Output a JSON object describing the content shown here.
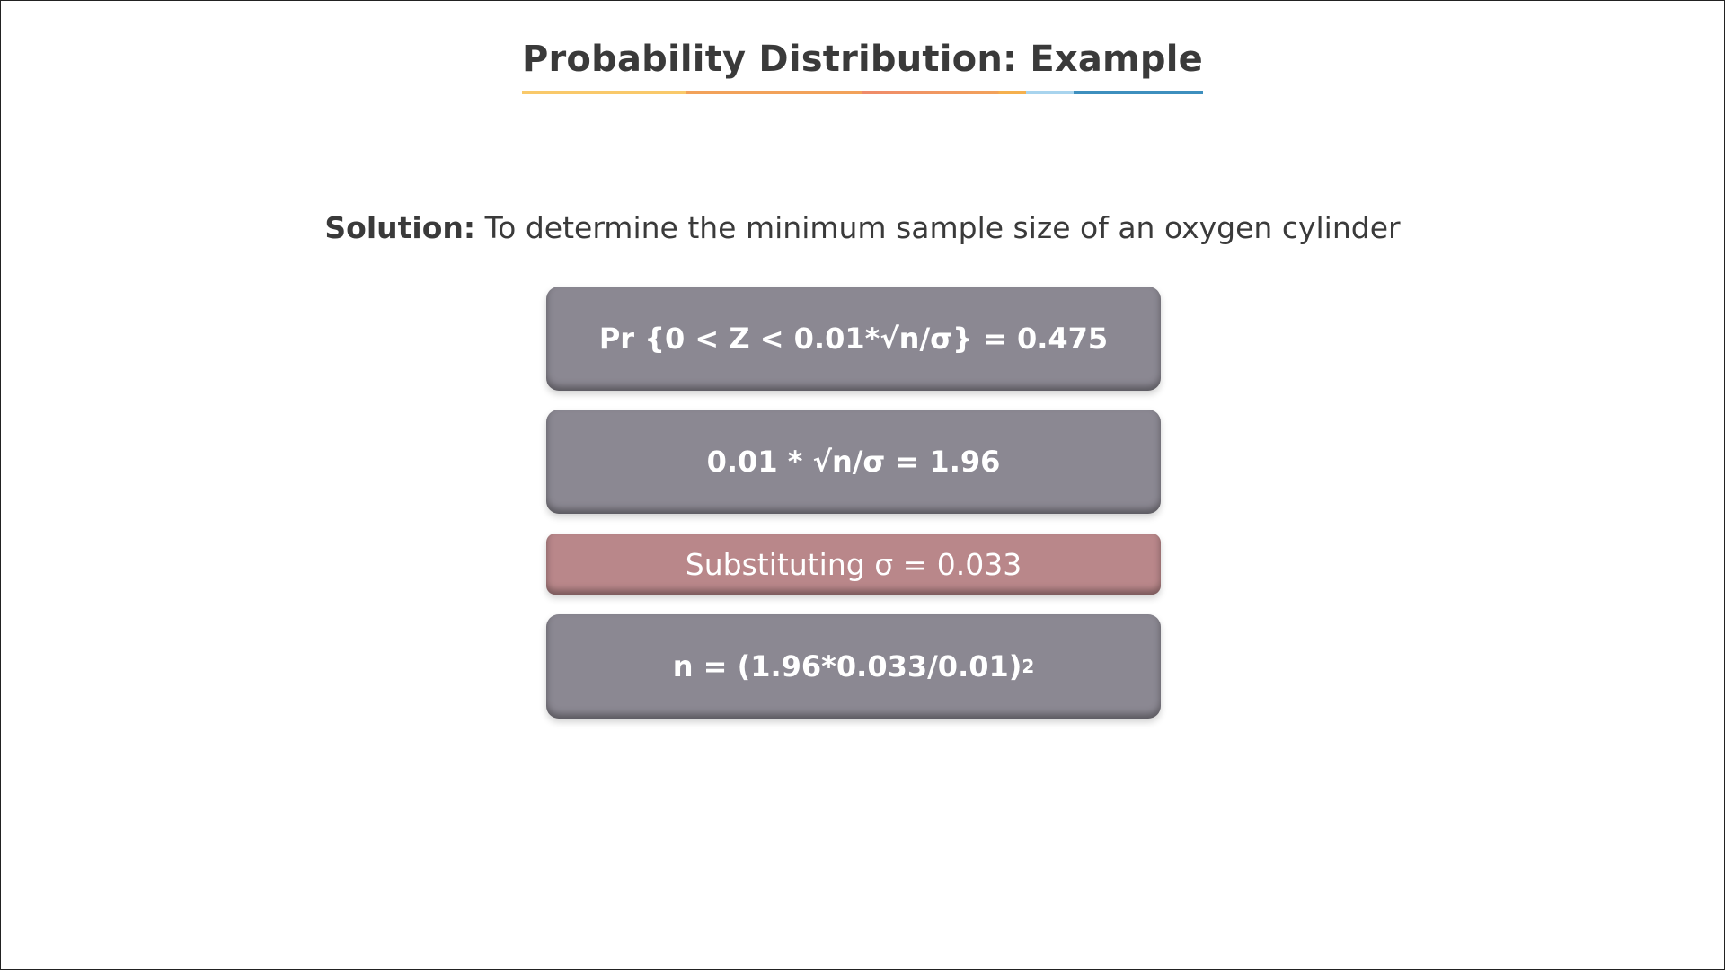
{
  "slide": {
    "title": "Probability Distribution: Example",
    "solution": {
      "label": "Solution:",
      "text": " To determine the minimum sample size of an oxygen cylinder"
    },
    "steps": [
      {
        "text": "Pr {0 < Z < 0.01*√n/σ} = 0.475"
      },
      {
        "text": "0.01 * √n/σ = 1.96"
      },
      {
        "text": "Substituting σ = 0.033"
      },
      {
        "text": "n = (1.96*0.033/0.01)",
        "exponent": "2"
      }
    ]
  },
  "colors": {
    "step_box": "#8b8892",
    "highlight_box": "#b9878a",
    "title_text": "#3a3a3a"
  }
}
